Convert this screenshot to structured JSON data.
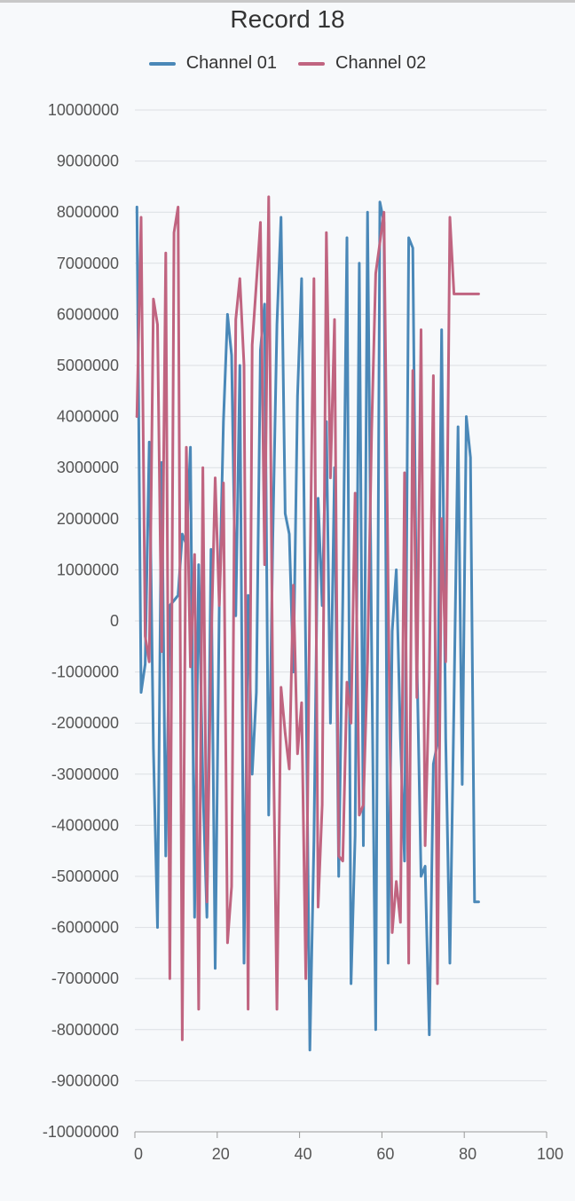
{
  "chart_data": {
    "type": "line",
    "title": "Record 18",
    "xlabel": "",
    "ylabel": "",
    "xlim": [
      0,
      100
    ],
    "ylim": [
      -10000000,
      10000000
    ],
    "x_ticks": [
      "0",
      "20",
      "40",
      "60",
      "80",
      "100"
    ],
    "y_ticks": [
      "10000000",
      "9000000",
      "8000000",
      "7000000",
      "6000000",
      "5000000",
      "4000000",
      "3000000",
      "2000000",
      "1000000",
      "0",
      "-1000000",
      "-2000000",
      "-3000000",
      "-4000000",
      "-5000000",
      "-6000000",
      "-7000000",
      "-8000000",
      "-9000000",
      "-10000000"
    ],
    "grid": true,
    "legend_position": "top",
    "series": [
      {
        "name": "Channel 01",
        "color": "#4a88b8",
        "x": [
          0,
          1,
          2,
          3,
          4,
          5,
          6,
          7,
          8,
          9,
          10,
          11,
          12,
          13,
          14,
          15,
          16,
          17,
          18,
          19,
          20,
          21,
          22,
          23,
          24,
          25,
          26,
          27,
          28,
          29,
          30,
          31,
          32,
          33,
          34,
          35,
          36,
          37,
          38,
          39,
          40,
          41,
          42,
          43,
          44,
          45,
          46,
          47,
          48,
          49,
          50,
          51,
          52,
          53,
          54,
          55,
          56,
          57,
          58,
          59,
          60,
          61,
          62,
          63,
          64,
          65,
          66,
          67,
          68,
          69,
          70,
          71,
          72,
          73,
          74,
          75,
          76,
          77,
          78,
          79,
          80,
          81,
          82,
          83
        ],
        "values": [
          8100000,
          -1400000,
          -850000,
          3500000,
          -2500000,
          -6000000,
          3100000,
          -4600000,
          300000,
          400000,
          500000,
          1700000,
          1500000,
          3400000,
          -5800000,
          1100000,
          -3200000,
          -5800000,
          1400000,
          -6800000,
          300000,
          3900000,
          6000000,
          5200000,
          100000,
          5000000,
          -6700000,
          500000,
          -3000000,
          -1400000,
          5300000,
          6200000,
          -3800000,
          1600000,
          5800000,
          7900000,
          2100000,
          1700000,
          -1000000,
          4400000,
          6700000,
          -700000,
          -8400000,
          -4300000,
          2400000,
          300000,
          3900000,
          -2000000,
          3000000,
          -5000000,
          400000,
          7500000,
          -7100000,
          -4200000,
          7000000,
          -4400000,
          8000000,
          -500000,
          -8000000,
          8200000,
          7800000,
          -6700000,
          -200000,
          1000000,
          -2300000,
          -4700000,
          7500000,
          7300000,
          -700000,
          -5000000,
          -4800000,
          -8100000,
          -2800000,
          -2400000,
          5700000,
          -2300000,
          -6700000,
          -1600000,
          3800000,
          -3200000,
          4000000,
          3200000,
          -5500000,
          -5500000
        ]
      },
      {
        "name": "Channel 02",
        "color": "#c06480",
        "x": [
          0,
          1,
          2,
          3,
          4,
          5,
          6,
          7,
          8,
          9,
          10,
          11,
          12,
          13,
          14,
          15,
          16,
          17,
          18,
          19,
          20,
          21,
          22,
          23,
          24,
          25,
          26,
          27,
          28,
          29,
          30,
          31,
          32,
          33,
          34,
          35,
          36,
          37,
          38,
          39,
          40,
          41,
          42,
          43,
          44,
          45,
          46,
          47,
          48,
          49,
          50,
          51,
          52,
          53,
          54,
          55,
          56,
          57,
          58,
          59,
          60,
          61,
          62,
          63,
          64,
          65,
          66,
          67,
          68,
          69,
          70,
          71,
          72,
          73,
          74,
          75,
          76,
          77,
          78,
          79,
          80,
          81,
          82,
          83
        ],
        "values": [
          4000000,
          7900000,
          -300000,
          -800000,
          6300000,
          5800000,
          -600000,
          7200000,
          -7000000,
          7600000,
          8100000,
          -8200000,
          3400000,
          -900000,
          1300000,
          -7600000,
          3000000,
          -5500000,
          -600000,
          2800000,
          300000,
          2700000,
          -6300000,
          -5200000,
          5900000,
          6700000,
          5000000,
          -7600000,
          5400000,
          6600000,
          7800000,
          1100000,
          8300000,
          -1500000,
          -7600000,
          -1300000,
          -2200000,
          -2900000,
          700000,
          -2600000,
          -1600000,
          -7000000,
          700000,
          6700000,
          -5600000,
          -3600000,
          7600000,
          2800000,
          5900000,
          -4600000,
          -4700000,
          -1200000,
          -2000000,
          2500000,
          -3800000,
          -3600000,
          -800000,
          3700000,
          6800000,
          7400000,
          8000000,
          700000,
          -6100000,
          -5100000,
          -5900000,
          2900000,
          -6700000,
          4900000,
          -1500000,
          5700000,
          -4400000,
          -1100000,
          4800000,
          -7100000,
          2000000,
          -800000,
          7900000,
          6400000,
          6400000,
          6400000,
          6400000,
          6400000,
          6400000,
          6400000
        ]
      }
    ]
  }
}
